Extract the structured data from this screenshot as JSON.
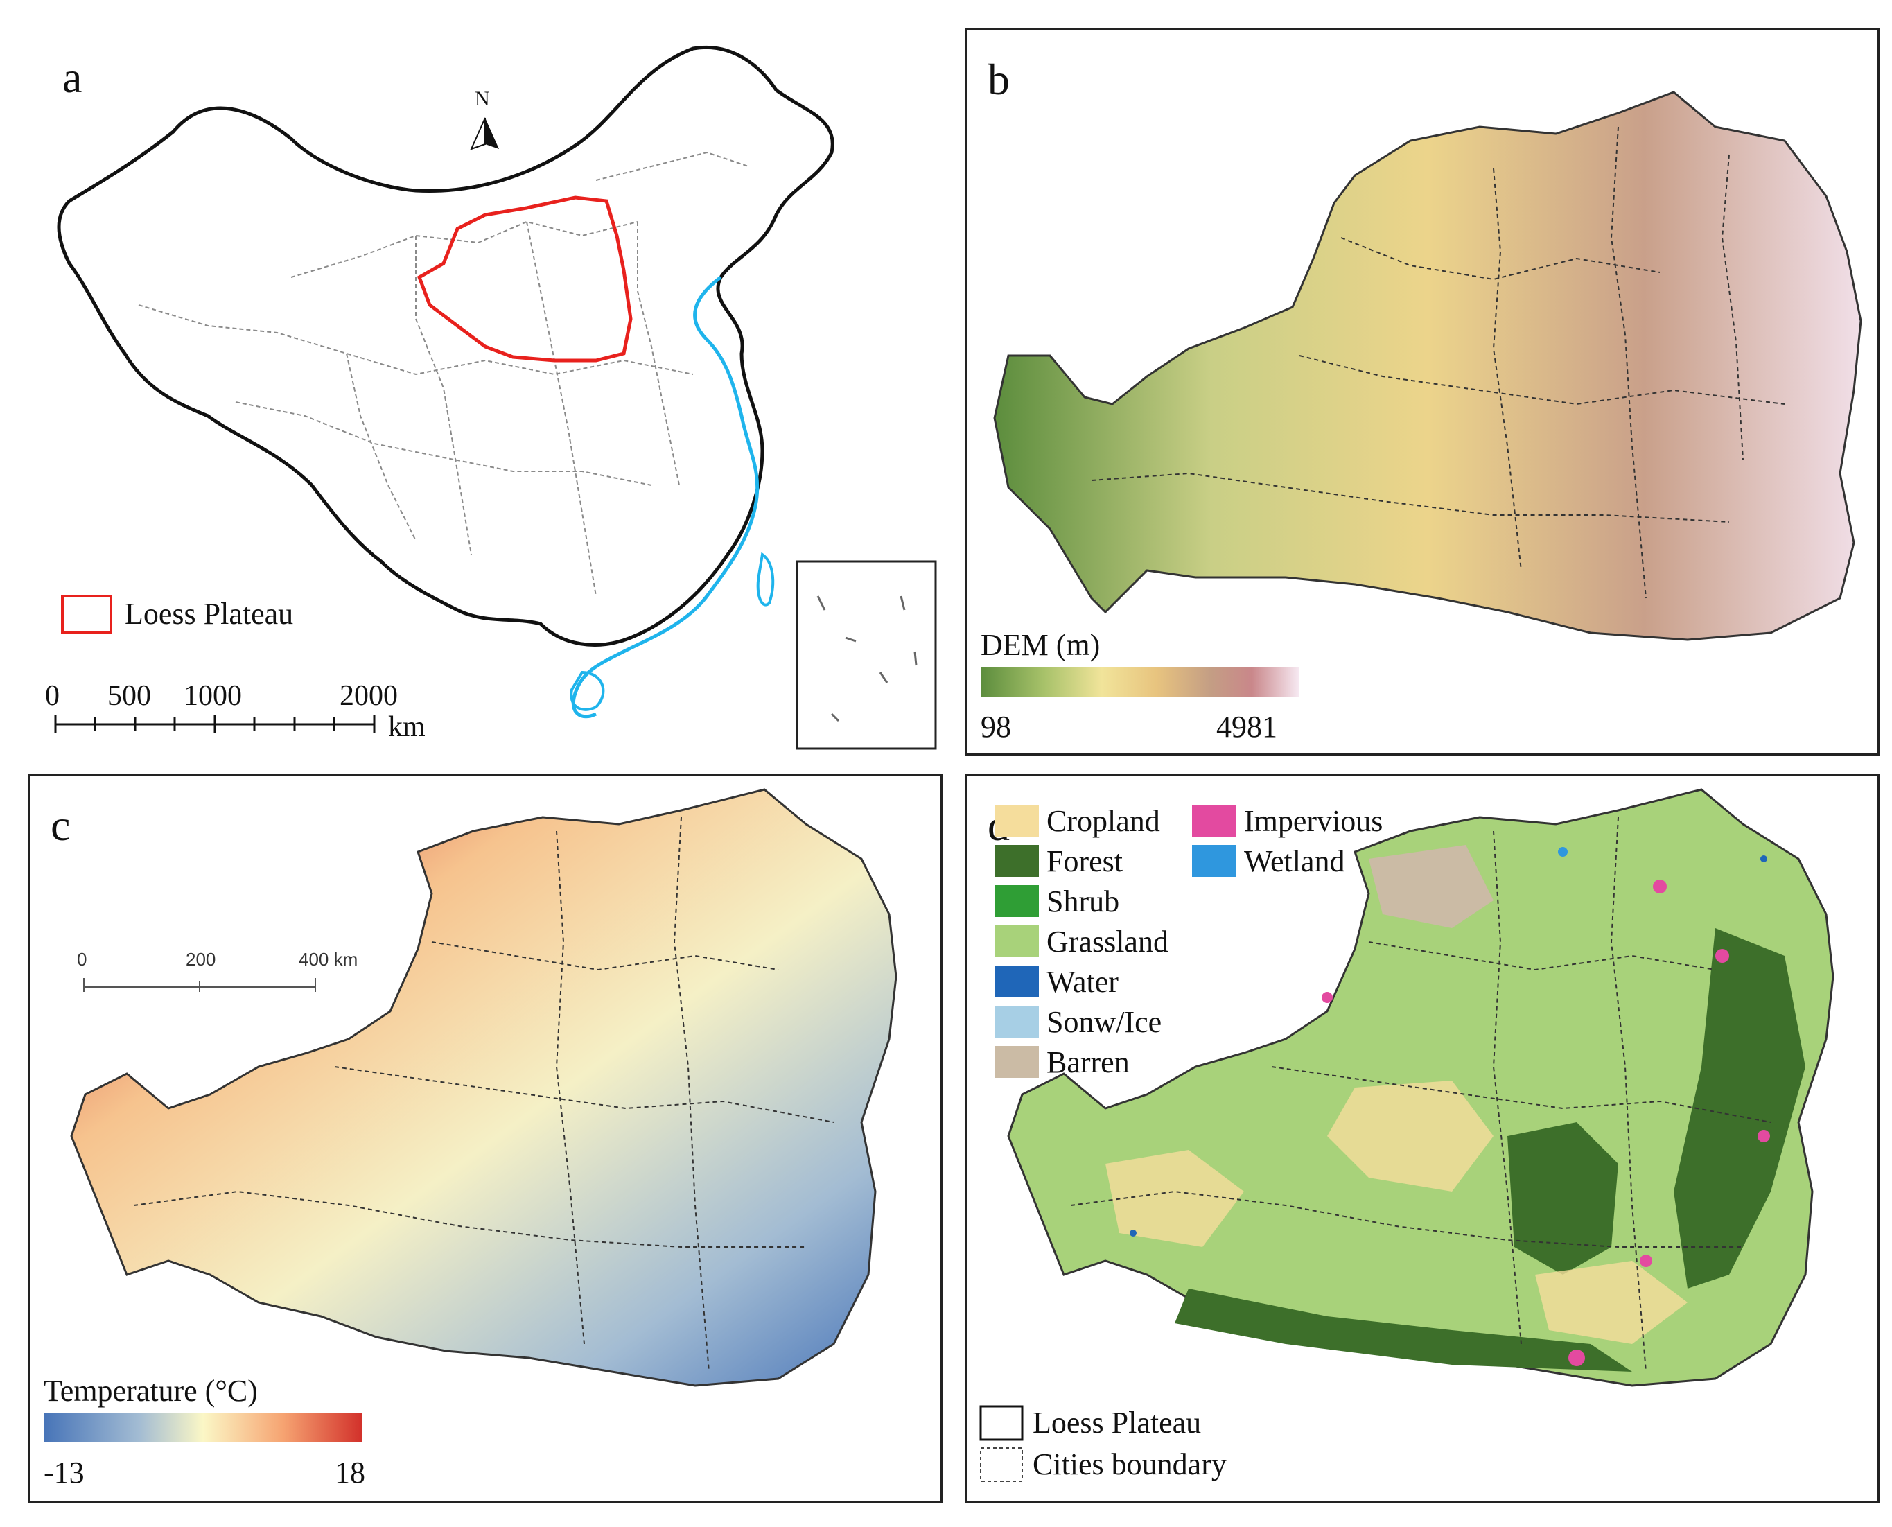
{
  "panels": {
    "a": {
      "label": "a",
      "north": "N",
      "legend_label": "Loess Plateau",
      "scale_ticks": [
        "0",
        "500",
        "1000",
        "2000"
      ],
      "scale_unit": "km",
      "colors": {
        "loess": "#e8211d",
        "coast": "#1fb4ec",
        "border": "#111111"
      }
    },
    "b": {
      "label": "b",
      "legend_title": "DEM (m)",
      "min": "98",
      "max": "4981",
      "ramp": [
        "#5c8d3d",
        "#a8c26a",
        "#f1e49a",
        "#e8c47f",
        "#c49e84",
        "#c9878a",
        "#f7eaf3"
      ]
    },
    "c": {
      "label": "c",
      "scale_ticks": [
        "0",
        "200",
        "400 km"
      ],
      "legend_title": "Temperature (°C)",
      "min": "-13",
      "max": "18",
      "ramp": [
        "#4774b8",
        "#a3bcd3",
        "#fbf7c6",
        "#f6a472",
        "#d2302a"
      ]
    },
    "d": {
      "label": "d",
      "classes": [
        {
          "name": "Cropland",
          "color": "#f5dd9c"
        },
        {
          "name": "Forest",
          "color": "#3d6f2a"
        },
        {
          "name": "Shrub",
          "color": "#2f9e35"
        },
        {
          "name": "Grassland",
          "color": "#a8d27a"
        },
        {
          "name": "Water",
          "color": "#1f66b8"
        },
        {
          "name": "Sonw/Ice",
          "color": "#a7cfe5"
        },
        {
          "name": "Barren",
          "color": "#cbbba5"
        },
        {
          "name": "Impervious",
          "color": "#e34aa0"
        },
        {
          "name": "Wetland",
          "color": "#2f97de"
        }
      ],
      "boundary_label": "Loess Plateau",
      "cities_label": "Cities boundary"
    }
  }
}
